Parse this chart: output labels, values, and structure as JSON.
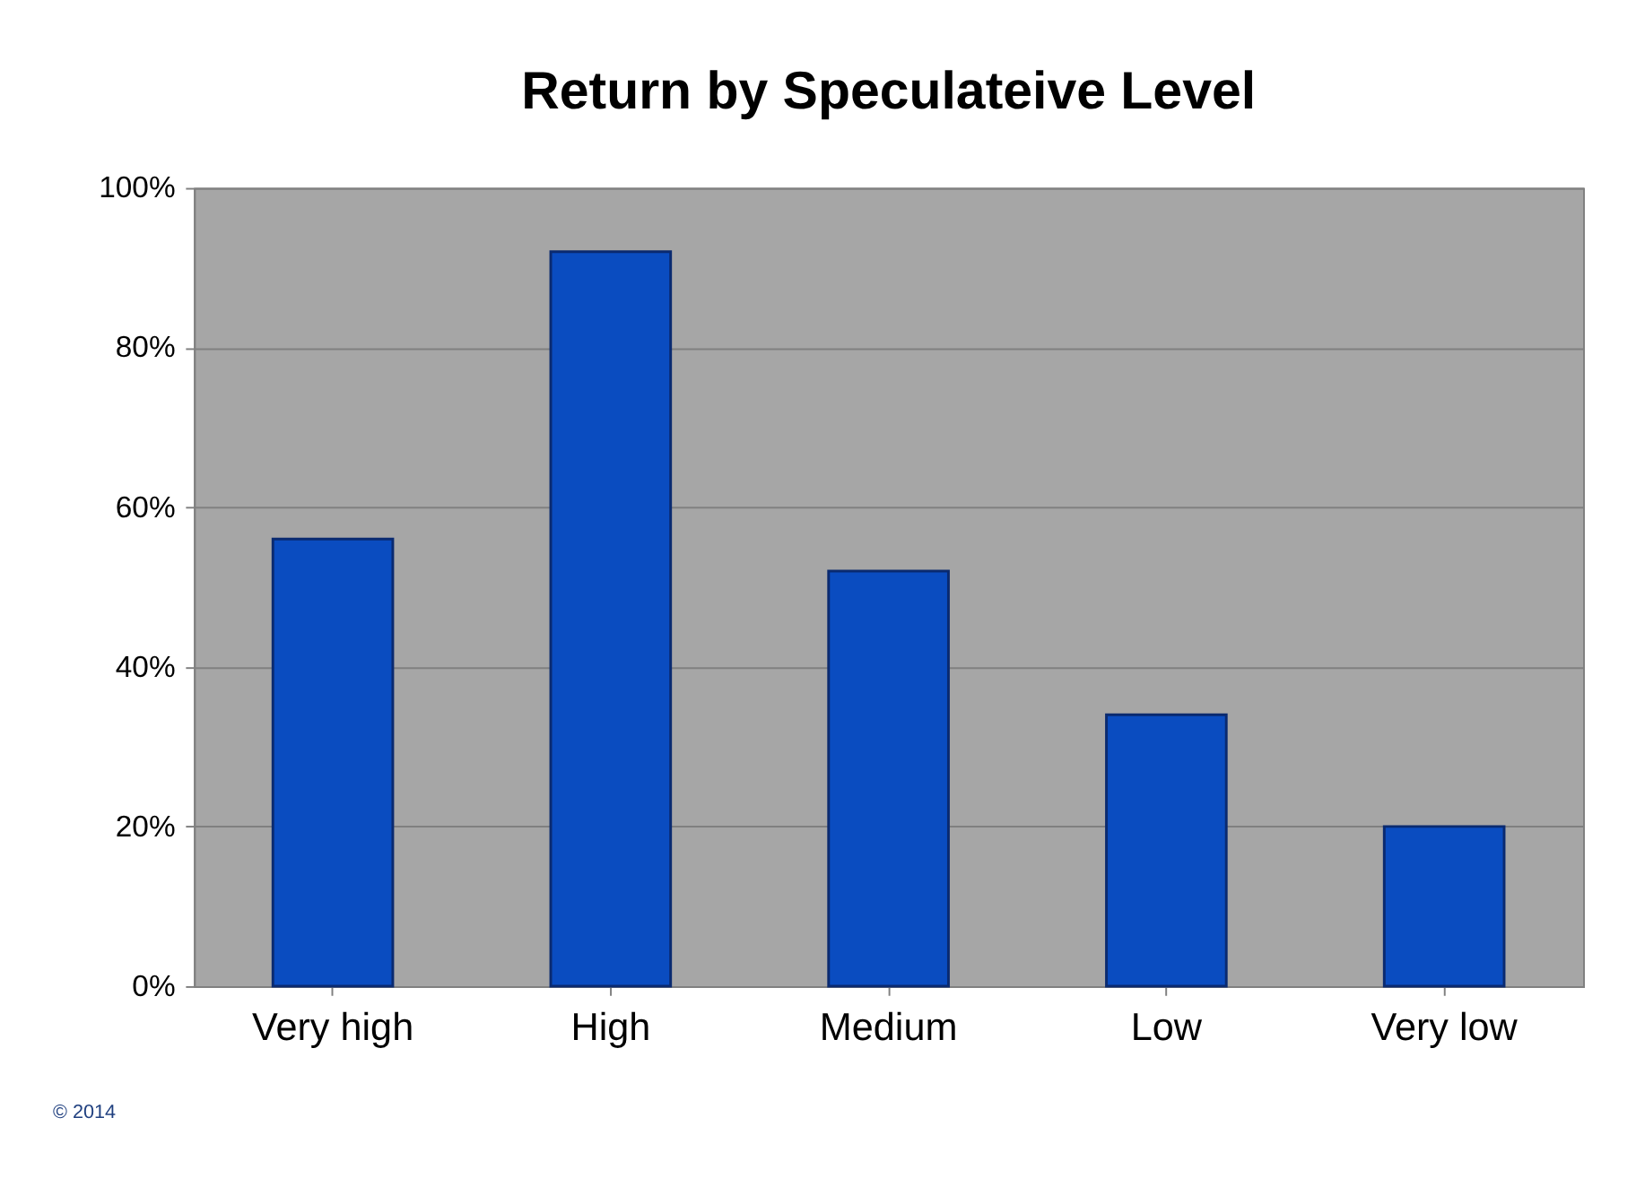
{
  "chart_data": {
    "type": "bar",
    "title": "Return by Speculateive Level",
    "categories": [
      "Very high",
      "High",
      "Medium",
      "Low",
      "Very low"
    ],
    "values": [
      56,
      92,
      52,
      34,
      20
    ],
    "color": "#0a4cc0",
    "ylim": [
      0,
      100
    ],
    "yticks": [
      {
        "value": 0,
        "label": "0%"
      },
      {
        "value": 20,
        "label": "20%"
      },
      {
        "value": 40,
        "label": "40%"
      },
      {
        "value": 60,
        "label": "60%"
      },
      {
        "value": 80,
        "label": "80%"
      },
      {
        "value": 100,
        "label": "100%"
      }
    ],
    "grid": "y",
    "annotations": [
      "© 2014"
    ]
  }
}
